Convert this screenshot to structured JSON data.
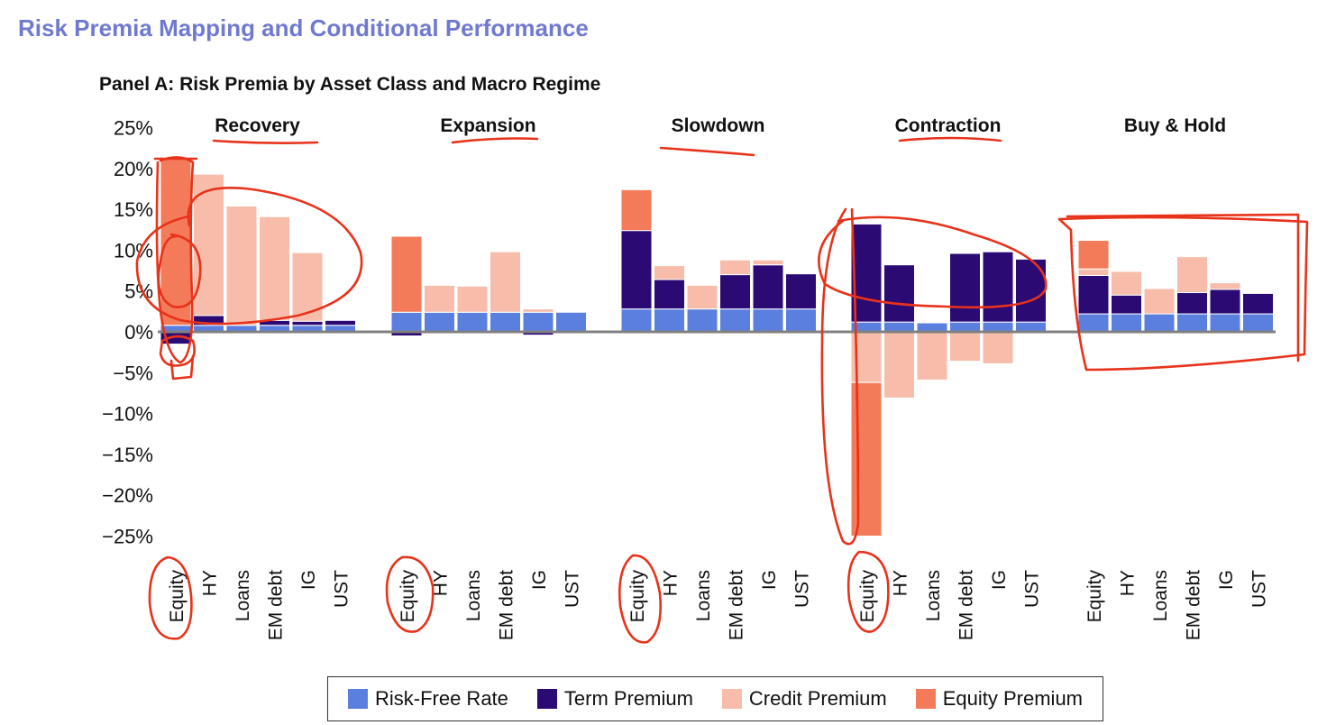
{
  "page_title": "Risk Premia Mapping and Conditional Performance",
  "chart_data": {
    "type": "bar",
    "stacked": true,
    "title": "Panel A: Risk Premia by Asset Class and Macro Regime",
    "ylim": [
      -25,
      25
    ],
    "yticks": [
      "25%",
      "20%",
      "15%",
      "10%",
      "5%",
      "0%",
      "−5%",
      "−10%",
      "−15%",
      "−20%",
      "−25%"
    ],
    "ytick_values": [
      25,
      20,
      15,
      10,
      5,
      0,
      -5,
      -10,
      -15,
      -20,
      -25
    ],
    "categories": [
      "Equity",
      "HY",
      "Loans",
      "EM debt",
      "IG",
      "UST"
    ],
    "colors": {
      "risk_free": "#5b7fde",
      "term": "#2b0a73",
      "credit": "#f7bcaa",
      "equity": "#f47b59",
      "axis": "#808080",
      "annotation": "#e8321a"
    },
    "series_order": [
      "risk_free",
      "term",
      "credit",
      "equity"
    ],
    "legend": [
      {
        "key": "risk_free",
        "label": "Risk-Free Rate"
      },
      {
        "key": "term",
        "label": "Term Premium"
      },
      {
        "key": "credit",
        "label": "Credit Premium"
      },
      {
        "key": "equity",
        "label": "Equity Premium"
      }
    ],
    "groups": [
      {
        "name": "Recovery",
        "values": {
          "Equity": {
            "risk_free": 0.8,
            "term": -1.5,
            "credit": 0,
            "equity": 20.5
          },
          "HY": {
            "risk_free": 0.8,
            "term": 1.2,
            "credit": 17.3,
            "equity": 0
          },
          "Loans": {
            "risk_free": 0.8,
            "term": 0,
            "credit": 14.6,
            "equity": 0
          },
          "EM debt": {
            "risk_free": 0.8,
            "term": 0.6,
            "credit": 12.7,
            "equity": 0
          },
          "IG": {
            "risk_free": 0.8,
            "term": 0.5,
            "credit": 8.4,
            "equity": 0
          },
          "UST": {
            "risk_free": 0.8,
            "term": 0.6,
            "credit": 0,
            "equity": 0
          }
        }
      },
      {
        "name": "Expansion",
        "values": {
          "Equity": {
            "risk_free": 2.4,
            "term": -0.5,
            "credit": 0,
            "equity": 9.3
          },
          "HY": {
            "risk_free": 2.4,
            "term": 0,
            "credit": 3.3,
            "equity": 0
          },
          "Loans": {
            "risk_free": 2.4,
            "term": 0,
            "credit": 3.2,
            "equity": 0
          },
          "EM debt": {
            "risk_free": 2.4,
            "term": 0,
            "credit": 7.4,
            "equity": 0
          },
          "IG": {
            "risk_free": 2.4,
            "term": -0.4,
            "credit": 0.4,
            "equity": 0
          },
          "UST": {
            "risk_free": 2.4,
            "term": 0,
            "credit": 0,
            "equity": 0
          }
        }
      },
      {
        "name": "Slowdown",
        "values": {
          "Equity": {
            "risk_free": 2.8,
            "term": 9.6,
            "credit": 0,
            "equity": 5.0
          },
          "HY": {
            "risk_free": 2.8,
            "term": 3.6,
            "credit": 1.7,
            "equity": 0
          },
          "Loans": {
            "risk_free": 2.8,
            "term": 0,
            "credit": 2.9,
            "equity": 0
          },
          "EM debt": {
            "risk_free": 2.8,
            "term": 4.2,
            "credit": 1.8,
            "equity": 0
          },
          "IG": {
            "risk_free": 2.8,
            "term": 5.4,
            "credit": 0.6,
            "equity": 0
          },
          "UST": {
            "risk_free": 2.8,
            "term": 4.3,
            "credit": 0,
            "equity": 0
          }
        }
      },
      {
        "name": "Contraction",
        "values": {
          "Equity": {
            "risk_free": 1.2,
            "term": 12.0,
            "credit": -6.2,
            "equity": -18.8
          },
          "HY": {
            "risk_free": 1.2,
            "term": 7.0,
            "credit": -8.1,
            "equity": 0
          },
          "Loans": {
            "risk_free": 1.1,
            "term": 0,
            "credit": -5.9,
            "equity": 0
          },
          "EM debt": {
            "risk_free": 1.2,
            "term": 8.4,
            "credit": -3.6,
            "equity": 0
          },
          "IG": {
            "risk_free": 1.2,
            "term": 8.6,
            "credit": -3.9,
            "equity": 0
          },
          "UST": {
            "risk_free": 1.2,
            "term": 7.7,
            "credit": 0,
            "equity": 0
          }
        }
      },
      {
        "name": "Buy & Hold",
        "values": {
          "Equity": {
            "risk_free": 2.2,
            "term": 4.7,
            "credit": 0.8,
            "equity": 3.5
          },
          "HY": {
            "risk_free": 2.2,
            "term": 2.3,
            "credit": 2.9,
            "equity": 0
          },
          "Loans": {
            "risk_free": 2.2,
            "term": 0,
            "credit": 3.1,
            "equity": 0
          },
          "EM debt": {
            "risk_free": 2.2,
            "term": 2.6,
            "credit": 4.4,
            "equity": 0
          },
          "IG": {
            "risk_free": 2.2,
            "term": 3.0,
            "credit": 0.8,
            "equity": 0
          },
          "UST": {
            "risk_free": 2.2,
            "term": 2.5,
            "credit": 0,
            "equity": 0
          }
        }
      }
    ]
  }
}
